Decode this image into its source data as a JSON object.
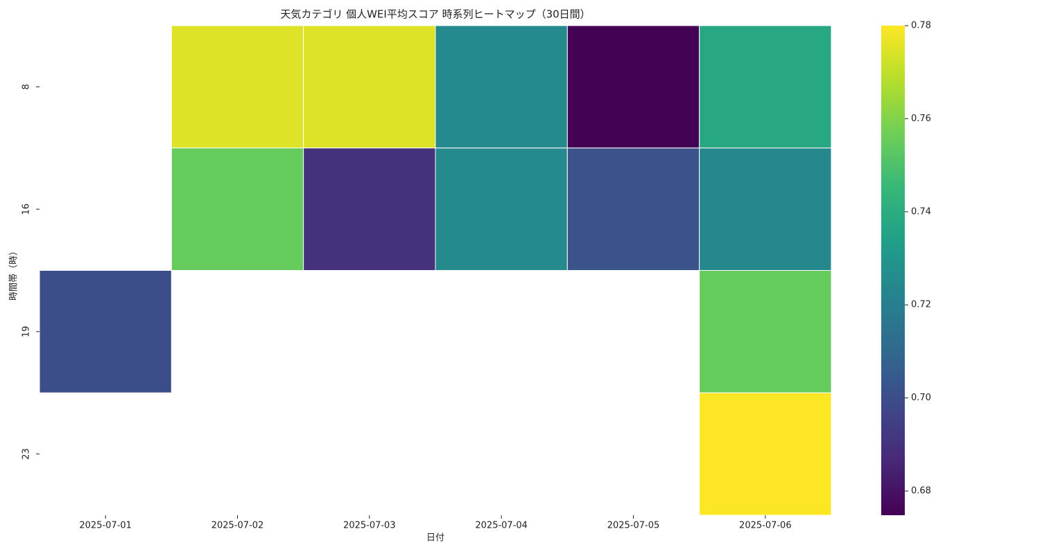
{
  "chart_data": {
    "type": "heatmap",
    "title": "天気カテゴリ 個人WEI平均スコア 時系列ヒートマップ（30日間）",
    "x_label": "日付",
    "y_label": "時間帯（時）",
    "x": [
      "2025-07-01",
      "2025-07-02",
      "2025-07-03",
      "2025-07-04",
      "2025-07-05",
      "2025-07-06"
    ],
    "y": [
      "8",
      "16",
      "19",
      "23"
    ],
    "values": [
      [
        null,
        0.775,
        0.775,
        0.725,
        0.675,
        0.738
      ],
      [
        null,
        0.755,
        0.69,
        0.725,
        0.702,
        0.724
      ],
      [
        0.7,
        null,
        null,
        null,
        null,
        0.755
      ],
      [
        null,
        null,
        null,
        null,
        null,
        0.78
      ]
    ],
    "colormap": "viridis",
    "clim": [
      0.6748,
      0.78
    ],
    "cticks": [
      0.68,
      {
        "value": 0.7,
        "label": "0.70"
      },
      0.72,
      0.74,
      0.76,
      0.78
    ]
  }
}
